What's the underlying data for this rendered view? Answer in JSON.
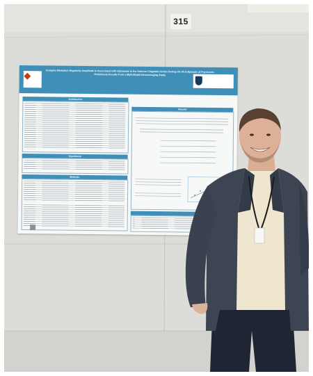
{
  "board": {
    "number": "315"
  },
  "poster": {
    "title": "Complex Mismatch Negativity Amplitude is Associated with Glutamate in the Anterior Cingulate Cortex During the First Episode of Psychosis: Preliminary Results from a Multi-Modal Neuroimaging Study",
    "authors": "",
    "sections": {
      "introduction": "Introduction",
      "results": "Results",
      "hypothesis": "Hypothesis",
      "methods": "Methods",
      "conclusions": ""
    },
    "left_logo_text": "",
    "right_logo_text": ""
  },
  "colors": {
    "poster_accent": "#3f8fb9",
    "wall": "#d9d9d6",
    "jacket": "#3d4553",
    "shirt": "#efe6cf",
    "trousers": "#1f2533"
  }
}
